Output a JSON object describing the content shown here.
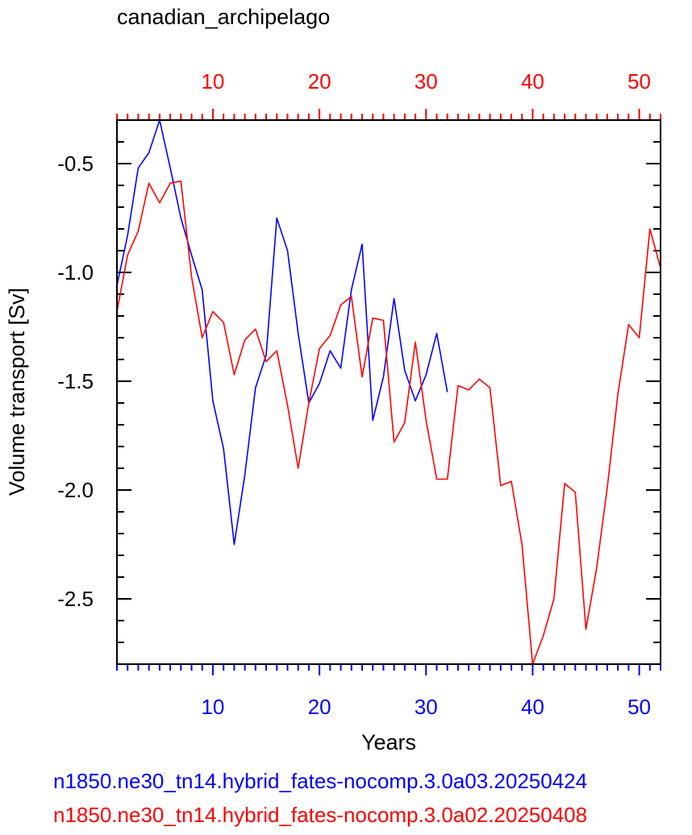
{
  "chart_data": {
    "type": "line",
    "title": "canadian_archipelago",
    "xlabel": "Years",
    "ylabel": "Volume transport [Sv]",
    "xlim": [
      1,
      52
    ],
    "ylim": [
      -2.8,
      -0.3
    ],
    "yticks": [
      -0.5,
      -1.0,
      -1.5,
      -2.0,
      -2.5
    ],
    "ytick_labels": [
      "-0.5",
      "-1.0",
      "-1.5",
      "-2.0",
      "-2.5"
    ],
    "xticks_bottom": [
      10,
      20,
      30,
      40,
      50
    ],
    "xticks_top": [
      10,
      20,
      30,
      40,
      50
    ],
    "colors": {
      "series1": "#0000ff",
      "series2": "#ff0000",
      "frame": "#000000"
    },
    "series": [
      {
        "name": "n1850.ne30_tn14.hybrid_fates-nocomp.3.0a03.20250424",
        "color": "#0000ff",
        "x": [
          1,
          2,
          3,
          4,
          5,
          6,
          7,
          8,
          9,
          10,
          11,
          12,
          13,
          14,
          15,
          16,
          17,
          18,
          19,
          20,
          21,
          22,
          23,
          24,
          25,
          26,
          27,
          28,
          29,
          30,
          31,
          32
        ],
        "values": [
          -1.06,
          -0.83,
          -0.52,
          -0.45,
          -0.3,
          -0.52,
          -0.75,
          -0.92,
          -1.08,
          -1.59,
          -1.81,
          -2.25,
          -1.93,
          -1.53,
          -1.38,
          -0.75,
          -0.9,
          -1.28,
          -1.6,
          -1.51,
          -1.36,
          -1.44,
          -1.08,
          -0.87,
          -1.68,
          -1.48,
          -1.12,
          -1.45,
          -1.59,
          -1.47,
          -1.28,
          -1.55
        ]
      },
      {
        "name": "n1850.ne30_tn14.hybrid_fates-nocomp.3.0a02.20250408",
        "color": "#ff0000",
        "x": [
          1,
          2,
          3,
          4,
          5,
          6,
          7,
          8,
          9,
          10,
          11,
          12,
          13,
          14,
          15,
          16,
          17,
          18,
          19,
          20,
          21,
          22,
          23,
          24,
          25,
          26,
          27,
          28,
          29,
          30,
          31,
          32,
          33,
          34,
          35,
          36,
          37,
          38,
          39,
          40,
          41,
          42,
          43,
          44,
          45,
          46,
          47,
          48,
          49,
          50,
          51,
          52
        ],
        "values": [
          -1.18,
          -0.92,
          -0.81,
          -0.59,
          -0.68,
          -0.59,
          -0.58,
          -1.02,
          -1.3,
          -1.18,
          -1.23,
          -1.47,
          -1.31,
          -1.26,
          -1.41,
          -1.36,
          -1.61,
          -1.9,
          -1.6,
          -1.35,
          -1.29,
          -1.15,
          -1.11,
          -1.48,
          -1.21,
          -1.22,
          -1.78,
          -1.69,
          -1.32,
          -1.68,
          -1.95,
          -1.95,
          -1.52,
          -1.54,
          -1.49,
          -1.53,
          -1.98,
          -1.96,
          -2.25,
          -2.8,
          -2.67,
          -2.5,
          -1.97,
          -2.01,
          -2.64,
          -2.36,
          -1.99,
          -1.56,
          -1.24,
          -1.3,
          -0.8,
          -0.98
        ]
      }
    ],
    "grid": false,
    "legend": "bottom, as colored text lines"
  }
}
